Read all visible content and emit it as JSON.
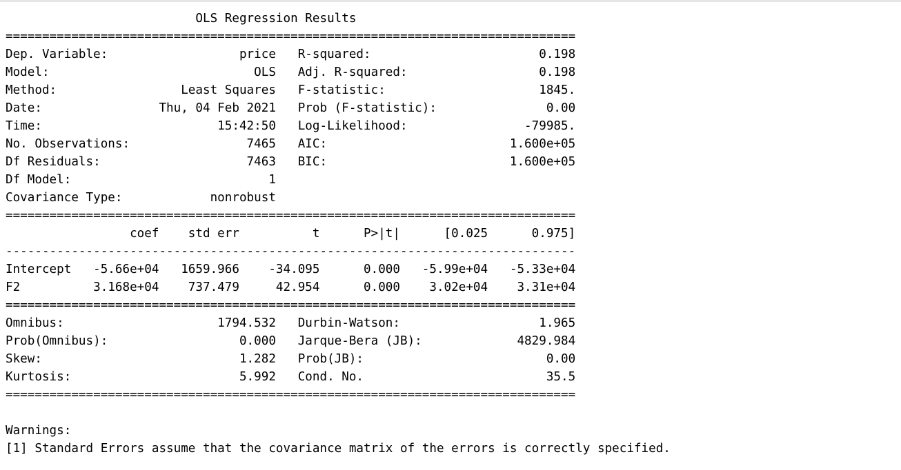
{
  "summary": {
    "lines": [
      "                          OLS Regression Results                          ",
      "==============================================================================",
      "Dep. Variable:                  price   R-squared:                       0.198",
      "Model:                            OLS   Adj. R-squared:                  0.198",
      "Method:                 Least Squares   F-statistic:                     1845.",
      "Date:                Thu, 04 Feb 2021   Prob (F-statistic):               0.00",
      "Time:                        15:42:50   Log-Likelihood:                -79985.",
      "No. Observations:                7465   AIC:                         1.600e+05",
      "Df Residuals:                    7463   BIC:                         1.600e+05",
      "Df Model:                           1                                         ",
      "Covariance Type:            nonrobust                                         ",
      "==============================================================================",
      "                 coef    std err          t      P>|t|      [0.025      0.975]",
      "------------------------------------------------------------------------------",
      "Intercept   -5.66e+04   1659.966    -34.095      0.000   -5.99e+04   -5.33e+04",
      "F2          3.168e+04    737.479     42.954      0.000    3.02e+04    3.31e+04",
      "==============================================================================",
      "Omnibus:                     1794.532   Durbin-Watson:                   1.965",
      "Prob(Omnibus):                  0.000   Jarque-Bera (JB):             4829.984",
      "Skew:                           1.282   Prob(JB):                         0.00",
      "Kurtosis:                       5.992   Cond. No.                         35.5",
      "==============================================================================",
      "",
      "Warnings:",
      "[1] Standard Errors assume that the covariance matrix of the errors is correctly specified."
    ]
  }
}
